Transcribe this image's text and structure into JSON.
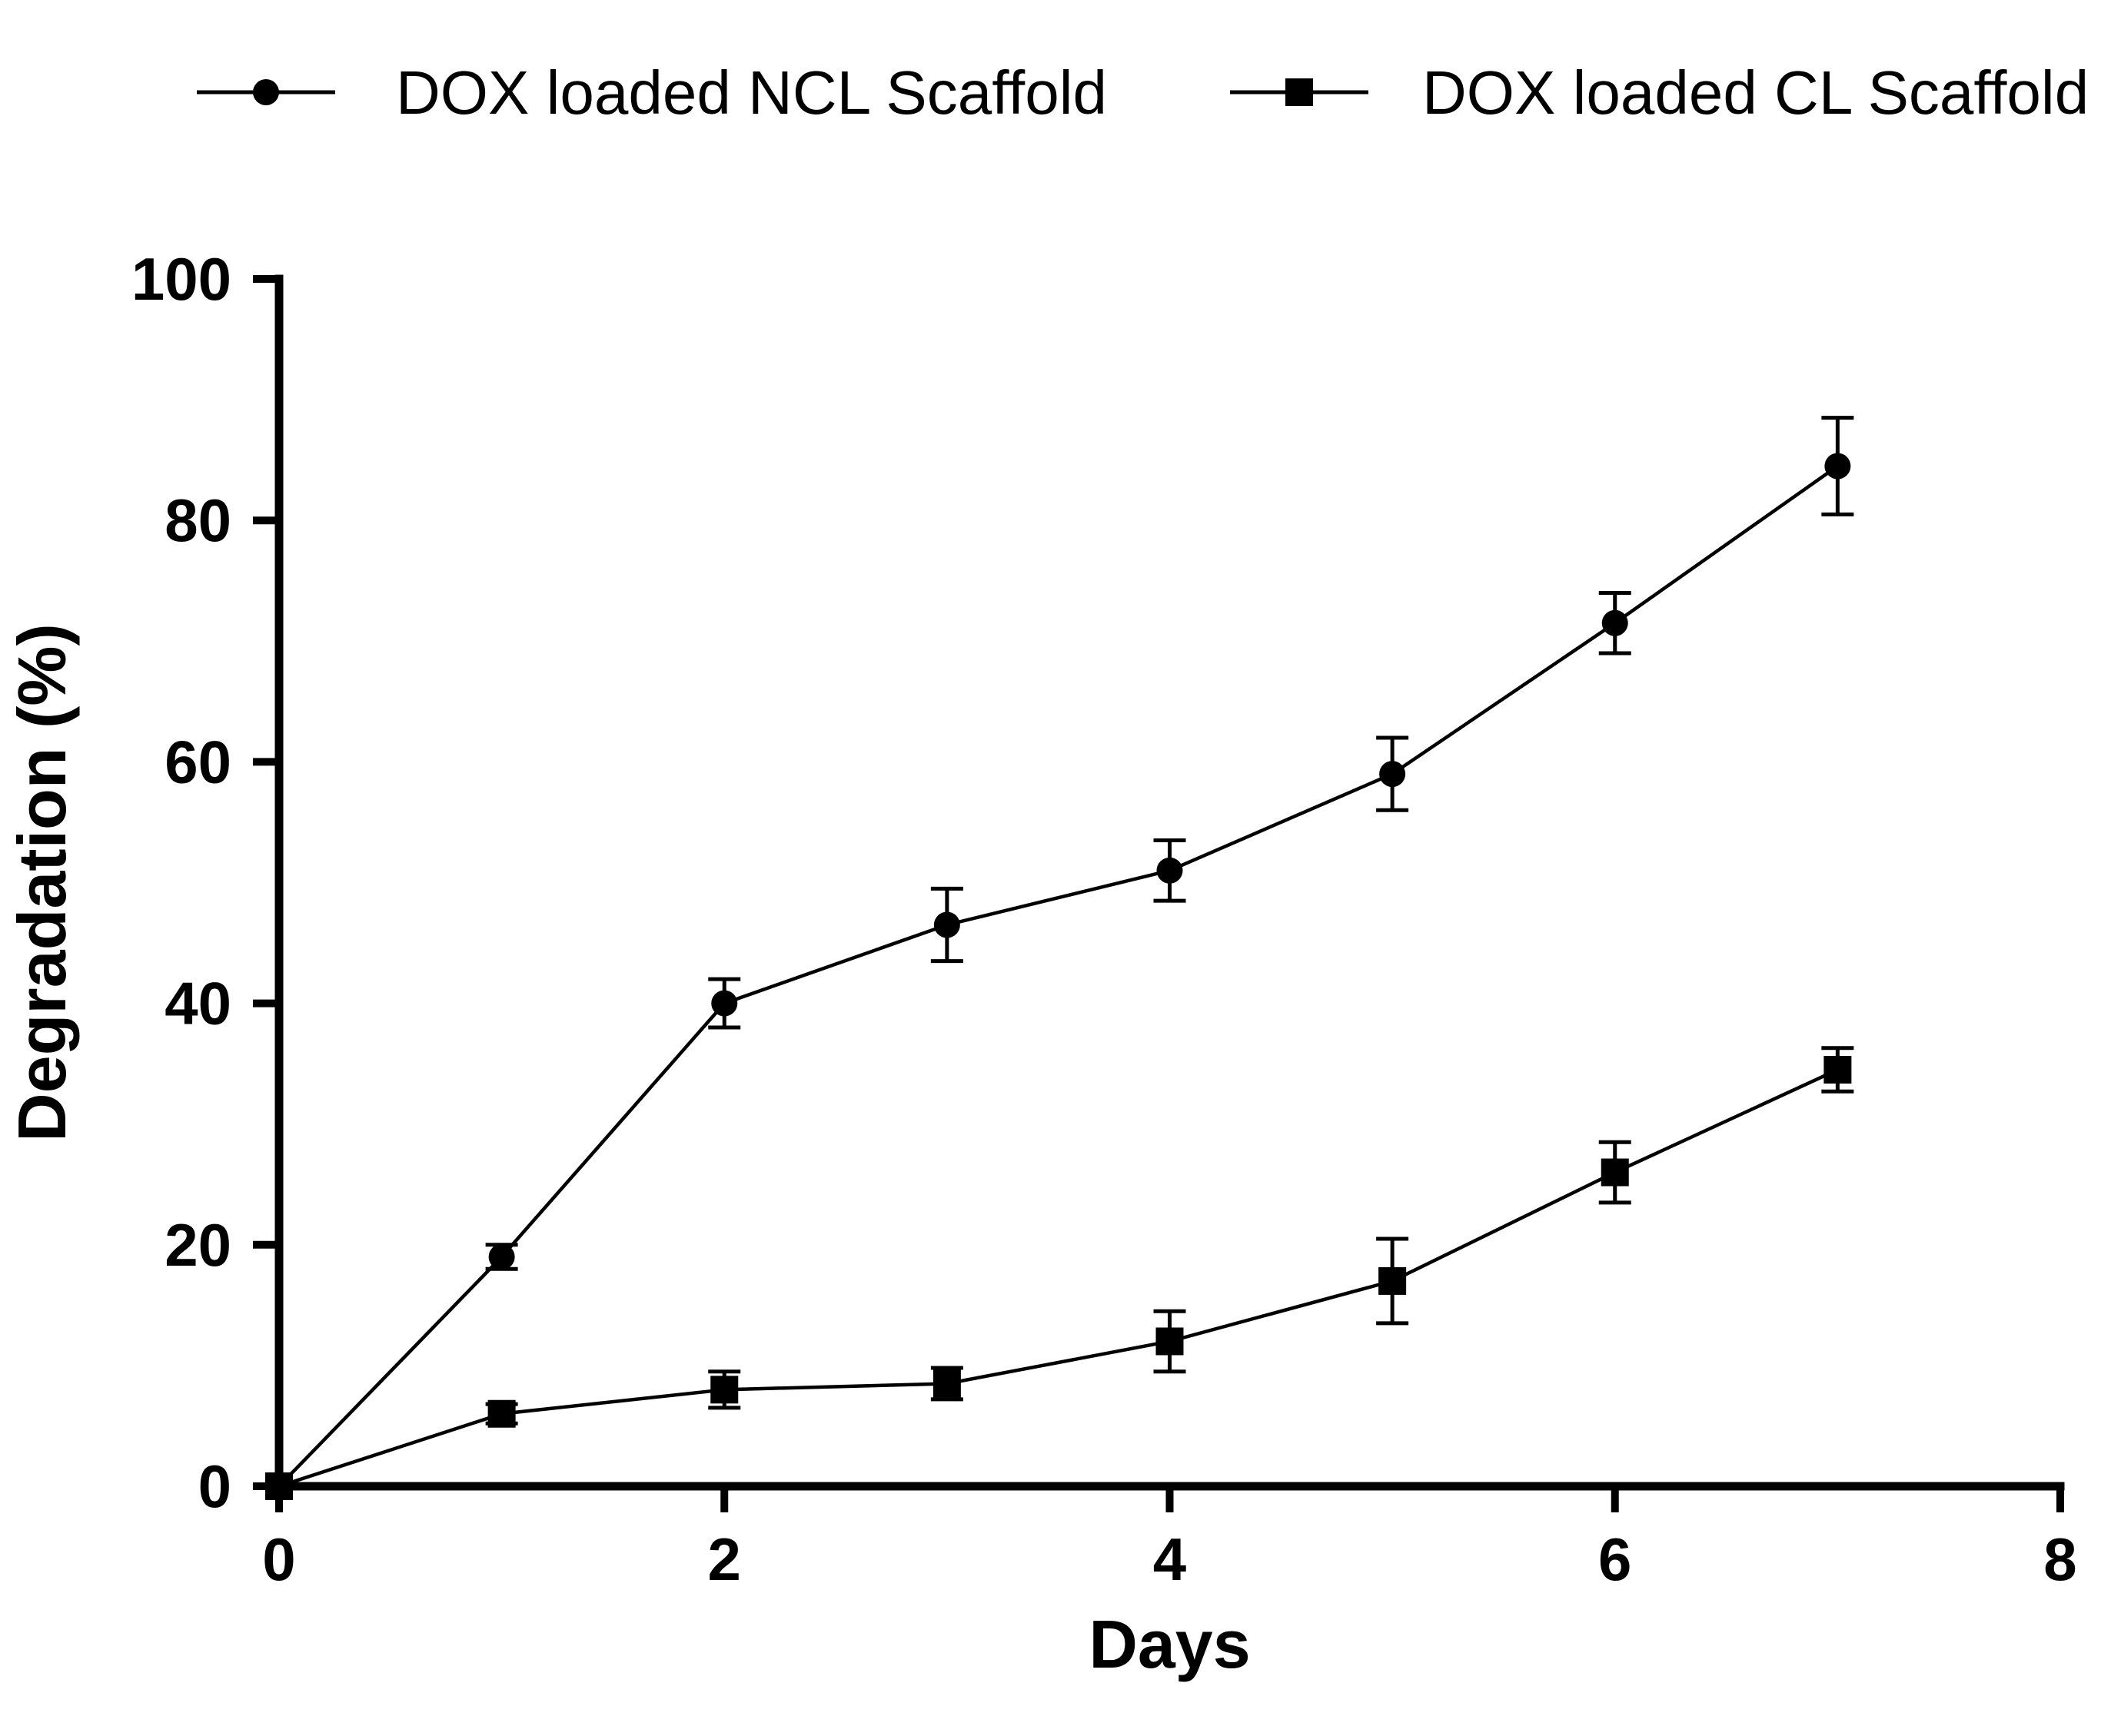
{
  "figure": {
    "background": "#ffffff",
    "foreground": "#000000"
  },
  "legend": {
    "position": "top",
    "items": [
      {
        "label": "DOX loaded NCL Scaffold",
        "marker": "circle"
      },
      {
        "label": "DOX loaded CL Scaffold",
        "marker": "square"
      }
    ]
  },
  "chart_data": {
    "type": "line",
    "xlabel": "Days",
    "ylabel": "Degradation (%)",
    "xlim": [
      0,
      8
    ],
    "ylim": [
      0,
      100
    ],
    "x_ticks": [
      0,
      2,
      4,
      6,
      8
    ],
    "y_ticks": [
      0,
      20,
      40,
      60,
      80,
      100
    ],
    "grid": false,
    "legend_position": "top",
    "error_bars": true,
    "x": [
      0,
      1,
      2,
      3,
      4,
      5,
      6,
      7
    ],
    "series": [
      {
        "name": "DOX loaded NCL Scaffold",
        "marker": "circle",
        "values": [
          0,
          19,
          40,
          46.5,
          51,
          59,
          71.5,
          84.5
        ],
        "errors": [
          0,
          1,
          2,
          3,
          2.5,
          3,
          2.5,
          4
        ]
      },
      {
        "name": "DOX loaded CL Scaffold",
        "marker": "square",
        "values": [
          0,
          6,
          8,
          8.5,
          12,
          17,
          26,
          34.5
        ],
        "errors": [
          0,
          0.8,
          1.5,
          1.3,
          2.5,
          3.5,
          2.5,
          1.8
        ]
      }
    ]
  }
}
